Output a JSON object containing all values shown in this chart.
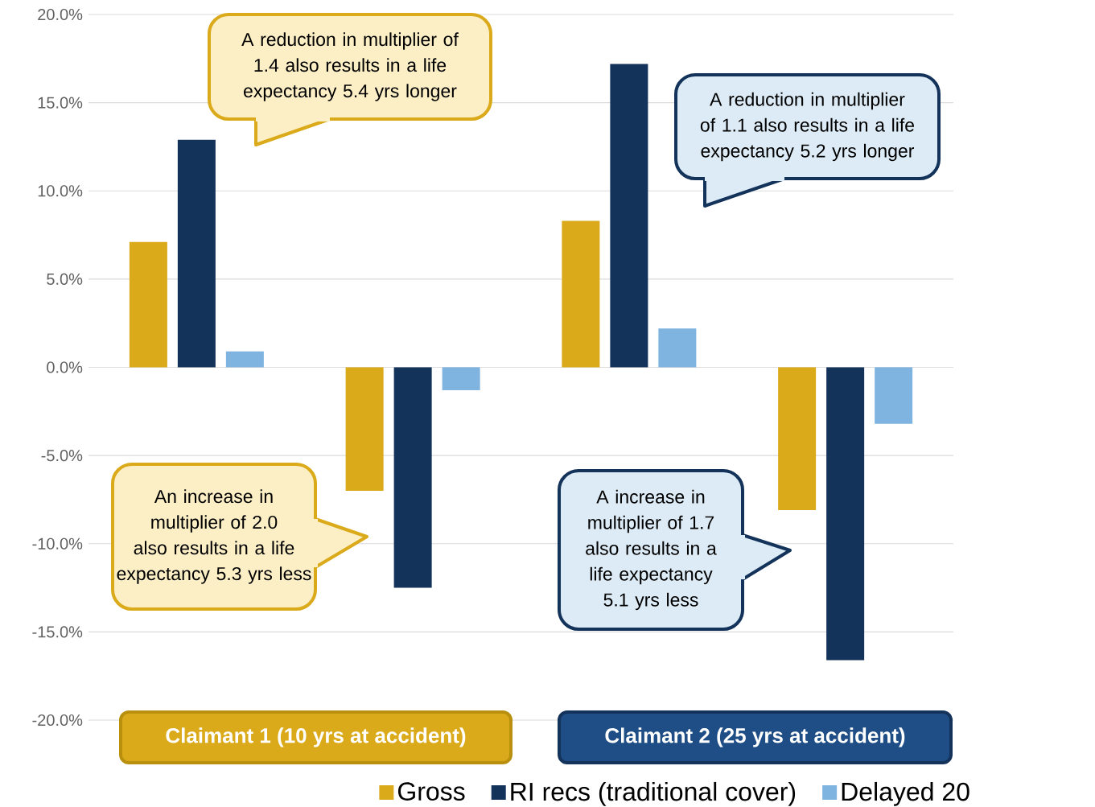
{
  "chart_data": {
    "type": "bar",
    "categories": [
      null,
      null,
      null,
      null
    ],
    "series": [
      {
        "name": "Gross",
        "color": "#dbaa1a",
        "values": [
          7.1,
          -7.0,
          8.3,
          -8.1
        ]
      },
      {
        "name": "RI recs (traditional cover)",
        "color": "#14335a",
        "values": [
          12.9,
          -12.5,
          17.2,
          -16.6
        ]
      },
      {
        "name": "Delayed 20",
        "color": "#7fb4e0",
        "values": [
          0.9,
          -1.3,
          2.2,
          -3.2
        ]
      }
    ],
    "ylim": [
      -20,
      20
    ],
    "yticks": [
      {
        "value": -20,
        "label": "-20.0%"
      },
      {
        "value": -15,
        "label": "-15.0%"
      },
      {
        "value": -10,
        "label": "-10.0%"
      },
      {
        "value": -5,
        "label": "-5.0%"
      },
      {
        "value": 0,
        "label": "0.0%"
      },
      {
        "value": 5,
        "label": "5.0%"
      },
      {
        "value": 10,
        "label": "10.0%"
      },
      {
        "value": 15,
        "label": "15.0%"
      },
      {
        "value": 20,
        "label": "20.0%"
      }
    ],
    "grid": "y",
    "legend": "bottom",
    "annotations": [
      "Claimant 1 (10 yrs at accident)",
      "Claimant 2 (25 yrs at accident)",
      "A reduction in multiplier of 1.4 also results in a life expectancy 5.4 yrs longer",
      "A reduction in multiplier of 1.1 also results in a life expectancy 5.2 yrs longer",
      "An increase in multiplier of 2.0 also results in a life expectancy 5.3 yrs less",
      "A increase in multiplier of 1.7 also results in a life expectancy 5.1 yrs less"
    ]
  }
}
